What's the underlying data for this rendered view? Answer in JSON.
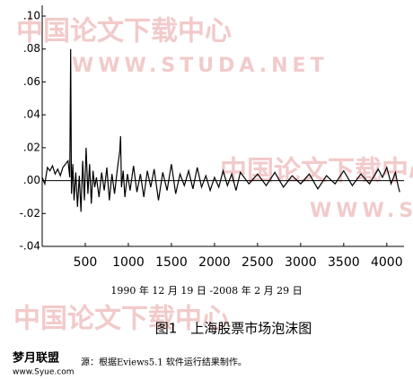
{
  "chart_data": {
    "type": "line",
    "title": "图1　上海股票市场泡沫图",
    "xlabel": "1990 年 12 月 19 日 -2008 年 2 月 29 日",
    "note": "源：根据Eviews5.1 软件运行结果制作。",
    "color": "#000000",
    "zero_line": true,
    "x": [
      0,
      30,
      60,
      90,
      120,
      150,
      180,
      210,
      240,
      270,
      300,
      320,
      330,
      340,
      355,
      370,
      390,
      410,
      430,
      450,
      470,
      490,
      510,
      530,
      550,
      570,
      590,
      610,
      630,
      660,
      690,
      720,
      750,
      780,
      810,
      840,
      870,
      900,
      910,
      920,
      940,
      960,
      990,
      1020,
      1060,
      1100,
      1140,
      1180,
      1220,
      1260,
      1300,
      1350,
      1400,
      1450,
      1500,
      1550,
      1600,
      1650,
      1700,
      1750,
      1800,
      1850,
      1900,
      1950,
      2000,
      2050,
      2100,
      2150,
      2200,
      2250,
      2300,
      2400,
      2500,
      2600,
      2700,
      2800,
      2900,
      3000,
      3100,
      3200,
      3300,
      3400,
      3500,
      3600,
      3700,
      3800,
      3900,
      3950,
      4000,
      4050,
      4100,
      4130,
      4150
    ],
    "values": [
      0.002,
      -0.002,
      0.008,
      0.006,
      0.009,
      0.004,
      0.007,
      0.003,
      0.008,
      0.01,
      0.012,
      0.002,
      0.08,
      -0.008,
      0.01,
      -0.012,
      0.005,
      -0.016,
      0.003,
      -0.019,
      0.012,
      -0.012,
      0.02,
      -0.008,
      0.01,
      -0.014,
      0.006,
      -0.004,
      0.002,
      -0.01,
      0.005,
      -0.006,
      0.008,
      -0.012,
      0.004,
      -0.008,
      0.006,
      0.018,
      0.027,
      -0.004,
      0.006,
      -0.01,
      0.004,
      -0.006,
      0.009,
      -0.007,
      0.004,
      -0.01,
      0.006,
      -0.004,
      0.007,
      -0.012,
      0.005,
      -0.006,
      0.01,
      -0.008,
      0.004,
      -0.003,
      0.006,
      -0.005,
      0.008,
      -0.004,
      0.003,
      -0.006,
      0.002,
      -0.004,
      0.006,
      -0.003,
      0.004,
      -0.006,
      0.005,
      -0.002,
      0.004,
      -0.003,
      0.005,
      -0.004,
      0.003,
      -0.002,
      0.004,
      -0.005,
      0.003,
      -0.002,
      0.006,
      -0.003,
      0.004,
      -0.002,
      0.007,
      0.002,
      0.008,
      -0.002,
      0.005,
      -0.003,
      -0.007
    ],
    "xlim": [
      0,
      4200
    ],
    "xticks": [
      500,
      1000,
      1500,
      2000,
      2500,
      3000,
      3500,
      4000
    ],
    "ylim": [
      -0.04,
      0.1
    ],
    "yticks": [
      {
        "value": 0.1,
        "label": ".10"
      },
      {
        "value": 0.08,
        "label": ".08"
      },
      {
        "value": 0.06,
        "label": ".06"
      },
      {
        "value": 0.04,
        "label": ".04"
      },
      {
        "value": 0.02,
        "label": ".02"
      },
      {
        "value": 0,
        "label": ".00"
      },
      {
        "value": -0.02,
        "label": "-.02"
      },
      {
        "value": -0.04,
        "label": "-.04"
      }
    ]
  },
  "watermarks": [
    "中国论文下载中心",
    "WWW.STUDA.NET",
    "中国论文下载中心",
    "WWW.STUDA",
    "中国论文下载中心"
  ],
  "logo": {
    "name": "梦月联盟",
    "url": "www.Syue.com"
  }
}
